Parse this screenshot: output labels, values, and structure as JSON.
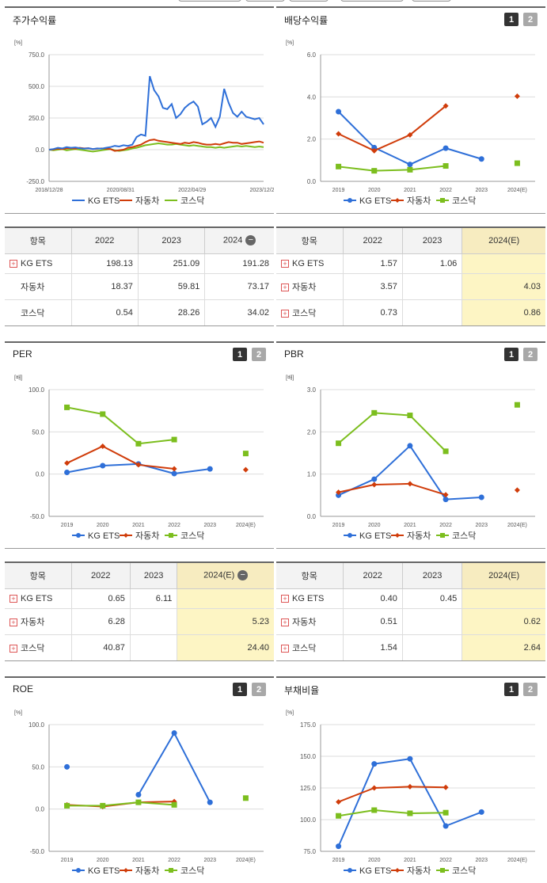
{
  "colors": {
    "kg_ets": "#2e6fd8",
    "auto": "#d03c0a",
    "kosdaq": "#7cbe1e"
  },
  "legend": [
    "KG ETS",
    "자동차",
    "코스닥"
  ],
  "pager": {
    "page1": "1",
    "page2": "2"
  },
  "icons": {
    "plus": "plus-box-icon",
    "minus": "minus-circle-icon"
  },
  "panels": {
    "price_return": {
      "title": "주가수익률"
    },
    "dividend": {
      "title": "배당수익률"
    },
    "per": {
      "title": "PER"
    },
    "pbr": {
      "title": "PBR"
    },
    "roe": {
      "title": "ROE"
    },
    "debt": {
      "title": "부채비율"
    }
  },
  "chart_data": [
    {
      "id": "price_return",
      "type": "line",
      "unit": "[%]",
      "ylim": [
        -250,
        750
      ],
      "yticks": [
        "750.0",
        "500.0",
        "250.0",
        "0.0",
        "-250.0"
      ],
      "xticks": [
        "2018/12/28",
        "2020/08/31",
        "2022/04/29",
        "2023/12/28"
      ],
      "series": [
        {
          "name": "KG ETS",
          "values": [
            0,
            5,
            15,
            10,
            20,
            15,
            18,
            12,
            8,
            12,
            5,
            10,
            8,
            15,
            20,
            30,
            25,
            35,
            30,
            40,
            100,
            120,
            110,
            580,
            470,
            420,
            330,
            320,
            360,
            250,
            280,
            330,
            360,
            380,
            340,
            200,
            220,
            250,
            180,
            260,
            480,
            370,
            290,
            260,
            300,
            260,
            250,
            240,
            250,
            200
          ]
        },
        {
          "name": "자동차",
          "values": [
            0,
            2,
            8,
            5,
            10,
            12,
            8,
            15,
            10,
            12,
            5,
            8,
            10,
            8,
            5,
            -10,
            -5,
            0,
            15,
            20,
            30,
            40,
            60,
            75,
            80,
            70,
            65,
            60,
            55,
            50,
            45,
            55,
            50,
            60,
            55,
            45,
            40,
            40,
            45,
            40,
            50,
            60,
            55,
            55,
            45,
            50,
            55,
            60,
            65,
            55
          ]
        },
        {
          "name": "코스닥",
          "values": [
            0,
            -5,
            0,
            5,
            -5,
            0,
            5,
            0,
            -5,
            -10,
            -15,
            -10,
            -5,
            0,
            5,
            -5,
            -10,
            -5,
            0,
            10,
            15,
            25,
            35,
            40,
            45,
            50,
            45,
            40,
            40,
            45,
            40,
            35,
            30,
            35,
            30,
            25,
            20,
            20,
            15,
            20,
            15,
            20,
            25,
            30,
            25,
            30,
            25,
            20,
            25,
            20
          ]
        }
      ]
    },
    {
      "id": "dividend",
      "type": "line",
      "unit": "[%]",
      "ylim": [
        0,
        6
      ],
      "yticks": [
        "6.0",
        "4.0",
        "2.0",
        "0.0"
      ],
      "categories": [
        "2019",
        "2020",
        "2021",
        "2022",
        "2023",
        "2024(E)"
      ],
      "series": [
        {
          "name": "KG ETS",
          "values": [
            3.3,
            1.6,
            0.8,
            1.57,
            1.06,
            null
          ]
        },
        {
          "name": "자동차",
          "values": [
            2.25,
            1.45,
            2.2,
            3.57,
            null,
            4.03
          ]
        },
        {
          "name": "코스닥",
          "values": [
            0.7,
            0.5,
            0.55,
            0.73,
            null,
            0.86
          ]
        }
      ]
    },
    {
      "id": "per",
      "type": "line",
      "unit": "[배]",
      "ylim": [
        -50,
        100
      ],
      "yticks": [
        "100.0",
        "50.0",
        "0.0",
        "-50.0"
      ],
      "categories": [
        "2019",
        "2020",
        "2021",
        "2022",
        "2023",
        "2024(E)"
      ],
      "series": [
        {
          "name": "KG ETS",
          "values": [
            2,
            10,
            12,
            0.65,
            6.11,
            null
          ]
        },
        {
          "name": "자동차",
          "values": [
            13,
            33,
            11,
            6.28,
            null,
            5.23
          ]
        },
        {
          "name": "코스닥",
          "values": [
            79,
            71,
            36,
            40.87,
            null,
            24.4
          ]
        }
      ]
    },
    {
      "id": "pbr",
      "type": "line",
      "unit": "[배]",
      "ylim": [
        0,
        3
      ],
      "yticks": [
        "3.0",
        "2.0",
        "1.0",
        "0.0"
      ],
      "categories": [
        "2019",
        "2020",
        "2021",
        "2022",
        "2023",
        "2024(E)"
      ],
      "series": [
        {
          "name": "KG ETS",
          "values": [
            0.5,
            0.88,
            1.67,
            0.4,
            0.45,
            null
          ]
        },
        {
          "name": "자동차",
          "values": [
            0.57,
            0.75,
            0.77,
            0.51,
            null,
            0.62
          ]
        },
        {
          "name": "코스닥",
          "values": [
            1.73,
            2.45,
            2.39,
            1.54,
            null,
            2.64
          ]
        }
      ]
    },
    {
      "id": "roe",
      "type": "line",
      "unit": "[%]",
      "ylim": [
        -50,
        100
      ],
      "yticks": [
        "100.0",
        "50.0",
        "0.0",
        "-50.0"
      ],
      "categories": [
        "2019",
        "2020",
        "2021",
        "2022",
        "2023",
        "2024(E)"
      ],
      "series": [
        {
          "name": "KG ETS",
          "values": [
            50,
            null,
            17,
            90,
            8,
            null
          ]
        },
        {
          "name": "자동차",
          "values": [
            5,
            3,
            8,
            9,
            null,
            null
          ]
        },
        {
          "name": "코스닥",
          "values": [
            4,
            4,
            8,
            5,
            null,
            13
          ]
        }
      ]
    },
    {
      "id": "debt",
      "type": "line",
      "unit": "[%]",
      "ylim": [
        75,
        175
      ],
      "yticks": [
        "175.0",
        "150.0",
        "125.0",
        "100.0",
        "75.0"
      ],
      "categories": [
        "2019",
        "2020",
        "2021",
        "2022",
        "2023",
        "2024(E)"
      ],
      "series": [
        {
          "name": "KG ETS",
          "values": [
            79,
            144,
            148,
            95,
            106,
            null
          ]
        },
        {
          "name": "자동차",
          "values": [
            114,
            125,
            126,
            125.5,
            null,
            null
          ]
        },
        {
          "name": "코스닥",
          "values": [
            103,
            107.5,
            105,
            105.5,
            null,
            null
          ]
        }
      ]
    }
  ],
  "tables": {
    "price_return": {
      "headers": [
        "항목",
        "2022",
        "2023",
        "2024"
      ],
      "rows": [
        {
          "name": "KG ETS",
          "v": [
            "198.13",
            "251.09",
            "191.28"
          ]
        },
        {
          "name": "자동차",
          "v": [
            "18.37",
            "59.81",
            "73.17"
          ]
        },
        {
          "name": "코스닥",
          "v": [
            "0.54",
            "28.26",
            "34.02"
          ]
        }
      ]
    },
    "dividend": {
      "headers": [
        "항목",
        "2022",
        "2023",
        "2024(E)"
      ],
      "rows": [
        {
          "name": "KG ETS",
          "v": [
            "1.57",
            "1.06",
            ""
          ]
        },
        {
          "name": "자동차",
          "v": [
            "3.57",
            "",
            "4.03"
          ]
        },
        {
          "name": "코스닥",
          "v": [
            "0.73",
            "",
            "0.86"
          ]
        }
      ]
    },
    "per": {
      "headers": [
        "항목",
        "2022",
        "2023",
        "2024(E)"
      ],
      "rows": [
        {
          "name": "KG ETS",
          "v": [
            "0.65",
            "6.11",
            ""
          ]
        },
        {
          "name": "자동차",
          "v": [
            "6.28",
            "",
            "5.23"
          ]
        },
        {
          "name": "코스닥",
          "v": [
            "40.87",
            "",
            "24.40"
          ]
        }
      ]
    },
    "pbr": {
      "headers": [
        "항목",
        "2022",
        "2023",
        "2024(E)"
      ],
      "rows": [
        {
          "name": "KG ETS",
          "v": [
            "0.40",
            "0.45",
            ""
          ]
        },
        {
          "name": "자동차",
          "v": [
            "0.51",
            "",
            "0.62"
          ]
        },
        {
          "name": "코스닥",
          "v": [
            "1.54",
            "",
            "2.64"
          ]
        }
      ]
    }
  }
}
